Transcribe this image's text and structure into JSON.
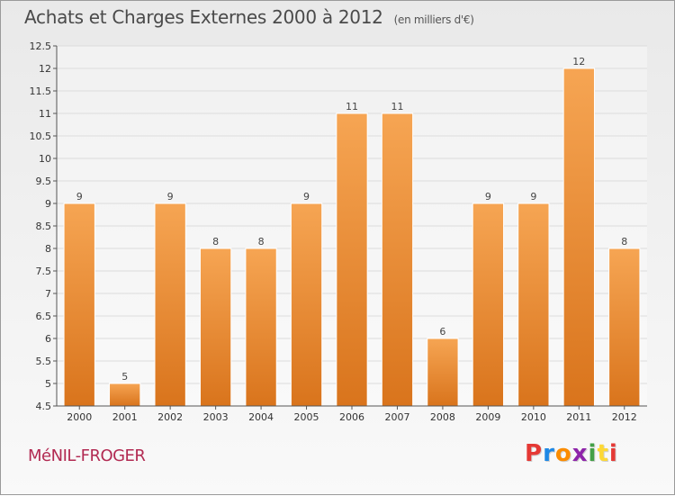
{
  "header": {
    "title": "Achats et Charges Externes 2000 à 2012",
    "subtitle": "(en milliers d'€)"
  },
  "footer": {
    "city": "MéNIL-FROGER",
    "logo_letters": [
      "P",
      "r",
      "o",
      "x",
      "i",
      "t",
      "i"
    ],
    "logo_colors": [
      "#e53935",
      "#1e88e5",
      "#fb8c00",
      "#8e24aa",
      "#43a047",
      "#fdd835",
      "#e53935"
    ]
  },
  "colors": {
    "bar_top": "#f6a553",
    "bar_bottom": "#d9741c",
    "axis": "#555555"
  },
  "chart_data": {
    "type": "bar",
    "categories": [
      "2000",
      "2001",
      "2002",
      "2003",
      "2004",
      "2005",
      "2006",
      "2007",
      "2008",
      "2009",
      "2010",
      "2011",
      "2012"
    ],
    "values": [
      9,
      5,
      9,
      8,
      8,
      9,
      11,
      11,
      6,
      9,
      9,
      12,
      8
    ],
    "value_labels": [
      "9",
      "5",
      "9",
      "8",
      "8",
      "9",
      "11",
      "11",
      "6",
      "9",
      "9",
      "12",
      "8"
    ],
    "title": "Achats et Charges Externes 2000 à 2012",
    "xlabel": "",
    "ylabel": "",
    "ylim": [
      4.5,
      12.5
    ],
    "yticks": [
      4.5,
      5,
      5.5,
      6,
      6.5,
      7,
      7.5,
      8,
      8.5,
      9,
      9.5,
      10,
      10.5,
      11,
      11.5,
      12,
      12.5
    ],
    "ytick_labels": [
      "4.5",
      "5",
      "5.5",
      "6",
      "6.5",
      "7",
      "7.5",
      "8",
      "8.5",
      "9",
      "9.5",
      "10",
      "10.5",
      "11",
      "11.5",
      "12",
      "12.5"
    ],
    "grid": true
  }
}
